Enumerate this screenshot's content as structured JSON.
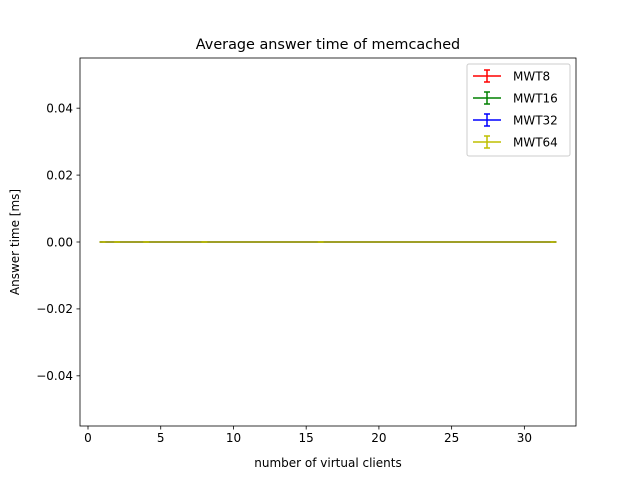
{
  "chart_data": {
    "type": "line",
    "title": "Average answer time of memcached",
    "xlabel": "number of virtual clients",
    "ylabel": "Answer time [ms]",
    "xlim": [
      -0.55,
      33.55
    ],
    "ylim": [
      -0.055,
      0.055
    ],
    "xticks": [
      0,
      5,
      10,
      15,
      20,
      25,
      30
    ],
    "xtick_labels": [
      "0",
      "5",
      "10",
      "15",
      "20",
      "25",
      "30"
    ],
    "yticks": [
      -0.04,
      -0.02,
      0.0,
      0.02,
      0.04
    ],
    "ytick_labels": [
      "−0.04",
      "−0.02",
      "0.00",
      "0.02",
      "0.04"
    ],
    "grid": false,
    "legend_position": "top-right",
    "x": [
      1,
      2,
      4,
      8,
      16,
      32
    ],
    "series": [
      {
        "name": "MWT8",
        "color": "#ff0000",
        "values": [
          0,
          0,
          0,
          0,
          0,
          0
        ],
        "errors": [
          0,
          0,
          0,
          0,
          0,
          0
        ]
      },
      {
        "name": "MWT16",
        "color": "#008000",
        "values": [
          0,
          0,
          0,
          0,
          0,
          0
        ],
        "errors": [
          0,
          0,
          0,
          0,
          0,
          0
        ]
      },
      {
        "name": "MWT32",
        "color": "#0000ff",
        "values": [
          0,
          0,
          0,
          0,
          0,
          0
        ],
        "errors": [
          0,
          0,
          0,
          0,
          0,
          0
        ]
      },
      {
        "name": "MWT64",
        "color": "#bfbf00",
        "values": [
          0,
          0,
          0,
          0,
          0,
          0
        ],
        "errors": [
          0,
          0,
          0,
          0,
          0,
          0
        ]
      }
    ]
  }
}
